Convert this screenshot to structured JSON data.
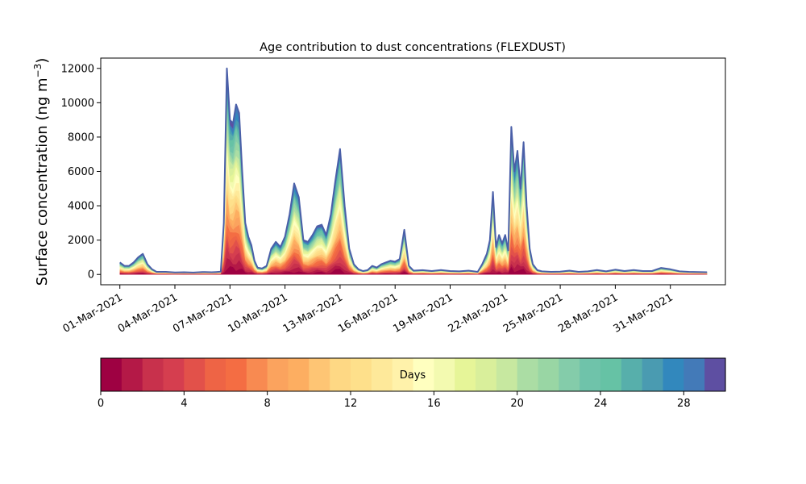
{
  "chart_data": {
    "type": "area",
    "title": "Age contribution to dust concentrations (FLEXDUST)",
    "ylabel": "Surface concentration (ng m",
    "ylabel_superscript": "−3",
    "ylabel_close": ")",
    "xlabel": "",
    "stacking": "stacked by age class",
    "x_unit": "date",
    "ylim": [
      -600,
      12600
    ],
    "xlim": [
      "2021-02-27T23:00",
      "2021-04-03T00:00"
    ],
    "yticks": [
      0,
      2000,
      4000,
      6000,
      8000,
      10000,
      12000
    ],
    "xticks": [
      {
        "date": "2021-03-01",
        "label": "01-Mar-2021"
      },
      {
        "date": "2021-03-04",
        "label": "04-Mar-2021"
      },
      {
        "date": "2021-03-07",
        "label": "07-Mar-2021"
      },
      {
        "date": "2021-03-10",
        "label": "10-Mar-2021"
      },
      {
        "date": "2021-03-13",
        "label": "13-Mar-2021"
      },
      {
        "date": "2021-03-16",
        "label": "16-Mar-2021"
      },
      {
        "date": "2021-03-19",
        "label": "19-Mar-2021"
      },
      {
        "date": "2021-03-22",
        "label": "22-Mar-2021"
      },
      {
        "date": "2021-03-25",
        "label": "25-Mar-2021"
      },
      {
        "date": "2021-03-28",
        "label": "28-Mar-2021"
      },
      {
        "date": "2021-03-31",
        "label": "31-Mar-2021"
      }
    ],
    "total_concentration": {
      "x": [
        "2021-03-01T00:00",
        "2021-03-01T06:00",
        "2021-03-01T12:00",
        "2021-03-01T18:00",
        "2021-03-02T00:00",
        "2021-03-02T06:00",
        "2021-03-02T12:00",
        "2021-03-02T18:00",
        "2021-03-03T00:00",
        "2021-03-03T12:00",
        "2021-03-04T00:00",
        "2021-03-04T12:00",
        "2021-03-05T00:00",
        "2021-03-05T12:00",
        "2021-03-06T00:00",
        "2021-03-06T06:00",
        "2021-03-06T12:00",
        "2021-03-06T16:00",
        "2021-03-06T20:00",
        "2021-03-07T00:00",
        "2021-03-07T04:00",
        "2021-03-07T08:00",
        "2021-03-07T12:00",
        "2021-03-07T16:00",
        "2021-03-07T20:00",
        "2021-03-08T00:00",
        "2021-03-08T04:00",
        "2021-03-08T08:00",
        "2021-03-08T12:00",
        "2021-03-08T18:00",
        "2021-03-09T00:00",
        "2021-03-09T06:00",
        "2021-03-09T12:00",
        "2021-03-09T18:00",
        "2021-03-10T00:00",
        "2021-03-10T06:00",
        "2021-03-10T12:00",
        "2021-03-10T18:00",
        "2021-03-11T00:00",
        "2021-03-11T06:00",
        "2021-03-11T12:00",
        "2021-03-11T18:00",
        "2021-03-12T00:00",
        "2021-03-12T06:00",
        "2021-03-12T12:00",
        "2021-03-12T18:00",
        "2021-03-13T00:00",
        "2021-03-13T06:00",
        "2021-03-13T12:00",
        "2021-03-13T18:00",
        "2021-03-14T00:00",
        "2021-03-14T06:00",
        "2021-03-14T12:00",
        "2021-03-14T18:00",
        "2021-03-15T00:00",
        "2021-03-15T06:00",
        "2021-03-15T12:00",
        "2021-03-15T18:00",
        "2021-03-16T00:00",
        "2021-03-16T06:00",
        "2021-03-16T12:00",
        "2021-03-16T18:00",
        "2021-03-17T00:00",
        "2021-03-17T12:00",
        "2021-03-18T00:00",
        "2021-03-18T12:00",
        "2021-03-19T00:00",
        "2021-03-19T12:00",
        "2021-03-20T00:00",
        "2021-03-20T12:00",
        "2021-03-20T18:00",
        "2021-03-21T00:00",
        "2021-03-21T04:00",
        "2021-03-21T08:00",
        "2021-03-21T12:00",
        "2021-03-21T16:00",
        "2021-03-21T20:00",
        "2021-03-22T00:00",
        "2021-03-22T04:00",
        "2021-03-22T08:00",
        "2021-03-22T12:00",
        "2021-03-22T16:00",
        "2021-03-22T20:00",
        "2021-03-23T00:00",
        "2021-03-23T04:00",
        "2021-03-23T08:00",
        "2021-03-23T12:00",
        "2021-03-23T18:00",
        "2021-03-24T00:00",
        "2021-03-24T12:00",
        "2021-03-25T00:00",
        "2021-03-25T12:00",
        "2021-03-26T00:00",
        "2021-03-26T12:00",
        "2021-03-27T00:00",
        "2021-03-27T12:00",
        "2021-03-28T00:00",
        "2021-03-28T12:00",
        "2021-03-29T00:00",
        "2021-03-29T12:00",
        "2021-03-30T00:00",
        "2021-03-30T12:00",
        "2021-03-31T00:00",
        "2021-03-31T12:00",
        "2021-04-01T00:00",
        "2021-04-01T12:00",
        "2021-04-02T00:00"
      ],
      "y": [
        700,
        500,
        500,
        700,
        1000,
        1200,
        600,
        300,
        150,
        150,
        120,
        130,
        110,
        140,
        130,
        140,
        160,
        3000,
        12000,
        9000,
        8800,
        9900,
        9400,
        6000,
        3000,
        2200,
        1700,
        800,
        400,
        350,
        500,
        1500,
        1900,
        1600,
        2200,
        3500,
        5300,
        4500,
        2000,
        1900,
        2300,
        2800,
        2900,
        2300,
        3500,
        5500,
        7300,
        4000,
        1500,
        600,
        300,
        200,
        250,
        500,
        400,
        600,
        700,
        800,
        750,
        900,
        2600,
        500,
        220,
        250,
        200,
        260,
        200,
        180,
        220,
        150,
        600,
        1200,
        2000,
        4800,
        1600,
        2300,
        1800,
        2300,
        1400,
        8600,
        6000,
        7200,
        5000,
        7700,
        4000,
        1500,
        600,
        250,
        180,
        150,
        160,
        220,
        150,
        180,
        260,
        180,
        280,
        200,
        260,
        200,
        200,
        380,
        300,
        180,
        150,
        140,
        130
      ]
    },
    "colorbar": {
      "label": "Days",
      "min": 0,
      "max": 30,
      "ticks": [
        0,
        4,
        8,
        12,
        16,
        20,
        24,
        28
      ],
      "colors": [
        "#9e0142",
        "#b41947",
        "#c8314c",
        "#d53e4f",
        "#e2514a",
        "#ee6445",
        "#f46d43",
        "#f88a51",
        "#fba35e",
        "#fdae61",
        "#fec574",
        "#fed884",
        "#fee08b",
        "#fee99a",
        "#fff2aa",
        "#ffffbf",
        "#f3fab0",
        "#e6f598",
        "#d9ef9b",
        "#c7e8a0",
        "#abdda4",
        "#99d6a4",
        "#84ccaa",
        "#6fc3aa",
        "#66c2a5",
        "#57afab",
        "#4a9bb1",
        "#3288bd",
        "#437ab8",
        "#5e4fa2"
      ]
    }
  }
}
